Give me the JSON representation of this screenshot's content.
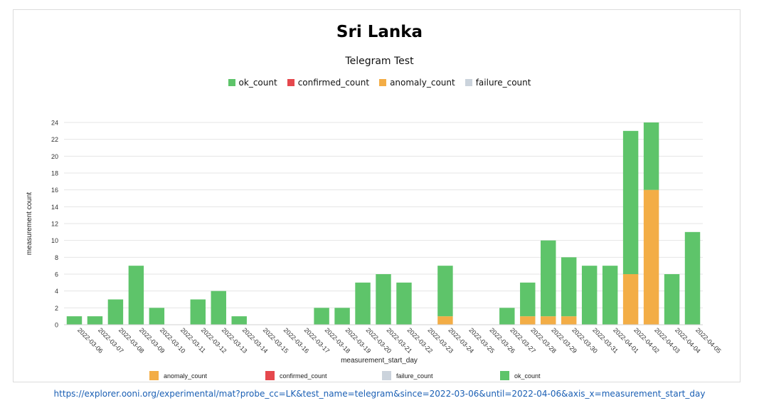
{
  "title": "Sri Lanka",
  "subtitle": "Telegram Test",
  "link": "https://explorer.ooni.org/experimental/mat?probe_cc=LK&test_name=telegram&since=2022-03-06&until=2022-04-06&axis_x=measurement_start_day",
  "legend_top": [
    {
      "label": "ok_count",
      "color": "#5ec46a"
    },
    {
      "label": "confirmed_count",
      "color": "#e5484d"
    },
    {
      "label": "anomaly_count",
      "color": "#f3ad46"
    },
    {
      "label": "failure_count",
      "color": "#cbd3dc"
    }
  ],
  "legend_bottom": [
    {
      "label": "anomaly_count",
      "color": "#f3ad46"
    },
    {
      "label": "confirmed_count",
      "color": "#e5484d"
    },
    {
      "label": "failure_count",
      "color": "#cbd3dc"
    },
    {
      "label": "ok_count",
      "color": "#5ec46a"
    }
  ],
  "chart_data": {
    "type": "bar",
    "stacked": true,
    "xlabel": "measurement_start_day",
    "ylabel": "measurement count",
    "ylim": [
      0,
      24
    ],
    "yticks": [
      0,
      2,
      4,
      6,
      8,
      10,
      12,
      14,
      16,
      18,
      20,
      22,
      24
    ],
    "grid": true,
    "categories": [
      "2022-03-06",
      "2022-03-07",
      "2022-03-08",
      "2022-03-09",
      "2022-03-10",
      "2022-03-11",
      "2022-03-12",
      "2022-03-13",
      "2022-03-14",
      "2022-03-15",
      "2022-03-16",
      "2022-03-17",
      "2022-03-18",
      "2022-03-19",
      "2022-03-20",
      "2022-03-21",
      "2022-03-22",
      "2022-03-23",
      "2022-03-24",
      "2022-03-25",
      "2022-03-26",
      "2022-03-27",
      "2022-03-28",
      "2022-03-29",
      "2022-03-30",
      "2022-03-31",
      "2022-04-01",
      "2022-04-02",
      "2022-04-03",
      "2022-04-04",
      "2022-04-05"
    ],
    "series": [
      {
        "name": "anomaly_count",
        "color": "#f3ad46",
        "values": [
          0,
          0,
          0,
          0,
          0,
          0,
          0,
          0,
          0,
          0,
          0,
          0,
          0,
          0,
          0,
          0,
          0,
          0,
          1,
          0,
          0,
          0,
          1,
          1,
          1,
          0,
          0,
          6,
          16,
          0,
          0
        ]
      },
      {
        "name": "ok_count",
        "color": "#5ec46a",
        "values": [
          1,
          1,
          3,
          7,
          2,
          0,
          3,
          4,
          1,
          0,
          0,
          0,
          2,
          2,
          5,
          6,
          5,
          0,
          6,
          0,
          0,
          2,
          4,
          9,
          7,
          7,
          7,
          17,
          8,
          6,
          11
        ]
      }
    ]
  }
}
